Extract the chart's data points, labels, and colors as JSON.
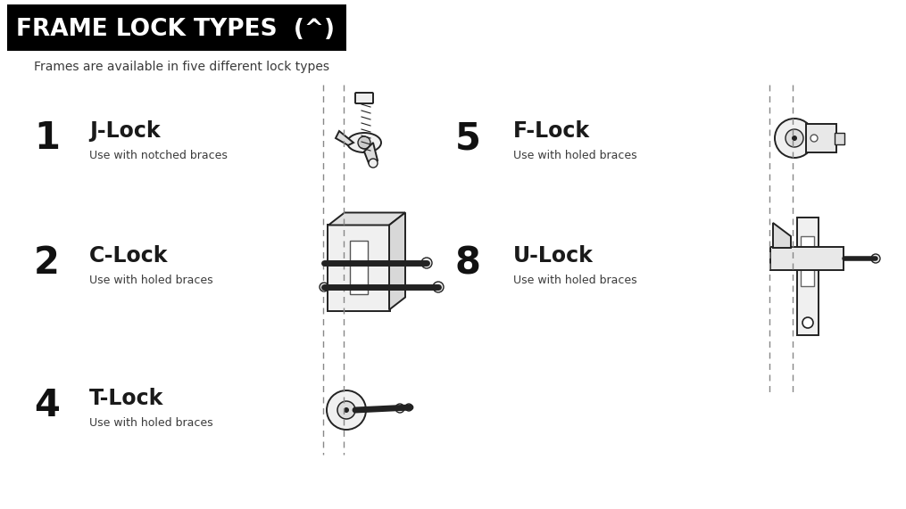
{
  "title": "FRAME LOCK TYPES  (^)",
  "subtitle": "Frames are available in five different lock types",
  "bg_color": "#ffffff",
  "title_bg": "#000000",
  "title_color": "#ffffff",
  "subtitle_color": "#3a3a3a",
  "number_color": "#111111",
  "lock_name_color": "#1a1a1a",
  "desc_color": "#3a3a3a",
  "locks": [
    {
      "number": "1",
      "name": "J-Lock",
      "desc": "Use with notched braces",
      "col": 0,
      "row": 0
    },
    {
      "number": "2",
      "name": "C-Lock",
      "desc": "Use with holed braces",
      "col": 0,
      "row": 1
    },
    {
      "number": "4",
      "name": "T-Lock",
      "desc": "Use with holed braces",
      "col": 0,
      "row": 2
    },
    {
      "number": "5",
      "name": "F-Lock",
      "desc": "Use with holed braces",
      "col": 1,
      "row": 0
    },
    {
      "number": "8",
      "name": "U-Lock",
      "desc": "Use with holed braces",
      "col": 1,
      "row": 1
    }
  ],
  "figsize": [
    10.15,
    5.71
  ],
  "dpi": 100
}
